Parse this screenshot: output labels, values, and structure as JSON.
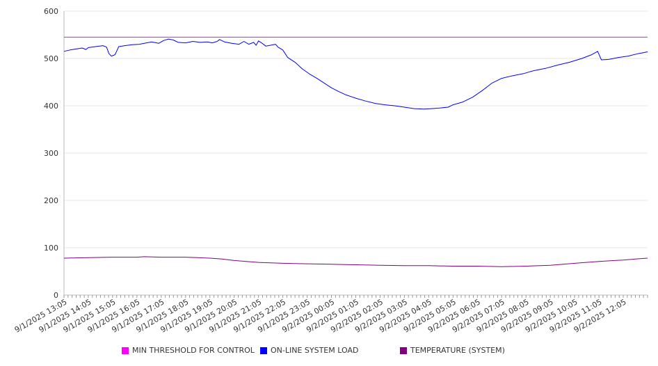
{
  "chart_data": {
    "type": "line",
    "title": "",
    "xlabel": "",
    "ylabel": "",
    "ylim": [
      0,
      600
    ],
    "yticks": [
      0,
      100,
      200,
      300,
      400,
      500,
      600
    ],
    "grid": true,
    "legend_position": "bottom",
    "x": [
      "9/1/2025 13:05",
      "9/1/2025 14:05",
      "9/1/2025 15:05",
      "9/1/2025 16:05",
      "9/1/2025 17:05",
      "9/1/2025 18:05",
      "9/1/2025 19:05",
      "9/1/2025 20:05",
      "9/1/2025 21:05",
      "9/1/2025 22:05",
      "9/1/2025 23:05",
      "9/2/2025 00:05",
      "9/2/2025 01:05",
      "9/2/2025 02:05",
      "9/2/2025 03:05",
      "9/2/2025 04:05",
      "9/2/2025 05:05",
      "9/2/2025 06:05",
      "9/2/2025 07:05",
      "9/2/2025 08:05",
      "9/2/2025 09:05",
      "9/2/2025 10:05",
      "9/2/2025 11:05",
      "9/2/2025 12:05"
    ],
    "series": [
      {
        "name": "MIN THRESHOLD FOR CONTROL",
        "color": "#ff00ff",
        "points": [
          [
            0,
            545
          ],
          [
            24,
            545
          ]
        ]
      },
      {
        "name": "ON-LINE SYSTEM LOAD",
        "color": "#0000ff",
        "points": [
          [
            0,
            515
          ],
          [
            0.25,
            518
          ],
          [
            0.5,
            520
          ],
          [
            0.75,
            522
          ],
          [
            0.9,
            519
          ],
          [
            1.0,
            523
          ],
          [
            1.3,
            525
          ],
          [
            1.6,
            527
          ],
          [
            1.75,
            524
          ],
          [
            1.85,
            510
          ],
          [
            1.95,
            505
          ],
          [
            2.1,
            508
          ],
          [
            2.25,
            525
          ],
          [
            2.5,
            527
          ],
          [
            2.8,
            529
          ],
          [
            3.1,
            530
          ],
          [
            3.3,
            532
          ],
          [
            3.6,
            535
          ],
          [
            3.9,
            532
          ],
          [
            4.1,
            538
          ],
          [
            4.3,
            541
          ],
          [
            4.5,
            539
          ],
          [
            4.7,
            534
          ],
          [
            5.0,
            533
          ],
          [
            5.3,
            536
          ],
          [
            5.6,
            534
          ],
          [
            5.9,
            535
          ],
          [
            6.1,
            533
          ],
          [
            6.3,
            536
          ],
          [
            6.4,
            540
          ],
          [
            6.6,
            535
          ],
          [
            6.9,
            532
          ],
          [
            7.2,
            530
          ],
          [
            7.4,
            536
          ],
          [
            7.6,
            530
          ],
          [
            7.8,
            534
          ],
          [
            7.9,
            528
          ],
          [
            8.0,
            537
          ],
          [
            8.15,
            532
          ],
          [
            8.3,
            526
          ],
          [
            8.5,
            528
          ],
          [
            8.7,
            530
          ],
          [
            8.8,
            524
          ],
          [
            9.0,
            518
          ],
          [
            9.2,
            502
          ],
          [
            9.5,
            492
          ],
          [
            9.8,
            478
          ],
          [
            10.1,
            467
          ],
          [
            10.4,
            458
          ],
          [
            10.7,
            448
          ],
          [
            11.0,
            438
          ],
          [
            11.3,
            430
          ],
          [
            11.6,
            423
          ],
          [
            12.0,
            416
          ],
          [
            12.4,
            410
          ],
          [
            12.8,
            405
          ],
          [
            13.2,
            402
          ],
          [
            13.6,
            400
          ],
          [
            14.0,
            397
          ],
          [
            14.4,
            394
          ],
          [
            14.8,
            393
          ],
          [
            15.1,
            394
          ],
          [
            15.4,
            395
          ],
          [
            15.8,
            397
          ],
          [
            16.0,
            402
          ],
          [
            16.4,
            408
          ],
          [
            16.8,
            418
          ],
          [
            17.2,
            432
          ],
          [
            17.6,
            448
          ],
          [
            18.0,
            458
          ],
          [
            18.4,
            463
          ],
          [
            18.9,
            468
          ],
          [
            19.3,
            474
          ],
          [
            19.8,
            479
          ],
          [
            20.3,
            486
          ],
          [
            20.8,
            492
          ],
          [
            21.3,
            500
          ],
          [
            21.7,
            508
          ],
          [
            21.95,
            515
          ],
          [
            22.1,
            497
          ],
          [
            22.4,
            498
          ],
          [
            22.8,
            502
          ],
          [
            23.2,
            505
          ],
          [
            23.6,
            510
          ],
          [
            24.0,
            514
          ]
        ]
      },
      {
        "name": "TEMPERATURE (SYSTEM)",
        "color": "#800080",
        "points": [
          [
            0,
            78
          ],
          [
            1.0,
            79
          ],
          [
            2.0,
            80
          ],
          [
            3.0,
            80
          ],
          [
            3.3,
            81
          ],
          [
            4.0,
            80
          ],
          [
            5.0,
            80
          ],
          [
            5.5,
            79
          ],
          [
            6.0,
            78
          ],
          [
            6.5,
            76
          ],
          [
            7.0,
            73
          ],
          [
            7.5,
            71
          ],
          [
            8.0,
            69
          ],
          [
            8.5,
            68
          ],
          [
            9.0,
            67
          ],
          [
            10.0,
            66
          ],
          [
            11.0,
            65
          ],
          [
            12.0,
            64
          ],
          [
            13.0,
            63
          ],
          [
            14.0,
            62
          ],
          [
            15.0,
            62
          ],
          [
            16.0,
            61
          ],
          [
            17.0,
            61
          ],
          [
            18.0,
            60
          ],
          [
            19.0,
            61
          ],
          [
            20.0,
            63
          ],
          [
            21.0,
            67
          ],
          [
            22.0,
            71
          ],
          [
            23.0,
            74
          ],
          [
            23.5,
            76
          ],
          [
            24.0,
            78
          ]
        ]
      }
    ]
  }
}
